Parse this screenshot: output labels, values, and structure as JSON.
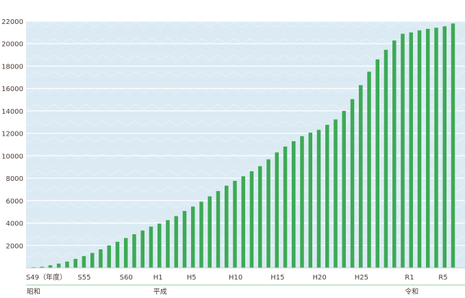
{
  "chart_data": {
    "type": "bar",
    "ylim": [
      0,
      22000
    ],
    "yticks": [
      2000,
      4000,
      6000,
      8000,
      10000,
      12000,
      14000,
      16000,
      18000,
      20000,
      22000
    ],
    "grid": true,
    "colors": {
      "bar": "#3daa55",
      "plot_bg": "#dcebf3",
      "grid": "#ffffff",
      "era_line": "#8fcf9b"
    },
    "x": [
      "S49",
      "S50",
      "S51",
      "S52",
      "S53",
      "S54",
      "S55",
      "S56",
      "S57",
      "S58",
      "S59",
      "S60",
      "S61",
      "S62",
      "S63",
      "H1",
      "H2",
      "H3",
      "H4",
      "H5",
      "H6",
      "H7",
      "H8",
      "H9",
      "H10",
      "H11",
      "H12",
      "H13",
      "H14",
      "H15",
      "H16",
      "H17",
      "H18",
      "H19",
      "H20",
      "H21",
      "H22",
      "H23",
      "H24",
      "H25",
      "H26",
      "H27",
      "H28",
      "H29",
      "H30",
      "R1",
      "R2",
      "R3",
      "R4",
      "R5",
      "R6"
    ],
    "values": [
      60,
      100,
      230,
      380,
      560,
      800,
      1050,
      1330,
      1650,
      2000,
      2330,
      2660,
      3000,
      3330,
      3680,
      3950,
      4260,
      4620,
      5070,
      5470,
      5900,
      6380,
      6850,
      7330,
      7760,
      8170,
      8620,
      9070,
      9680,
      10300,
      10820,
      11300,
      11750,
      12060,
      12310,
      12760,
      13240,
      14000,
      15050,
      16300,
      17500,
      18600,
      19450,
      20280,
      20880,
      21000,
      21180,
      21320,
      21420,
      21550,
      21800
    ],
    "x_tick_labels": [
      {
        "at": "S49",
        "label": "S49（年度）"
      },
      {
        "at": "S55",
        "label": "S55"
      },
      {
        "at": "S60",
        "label": "S60"
      },
      {
        "at": "H1",
        "label": "H1"
      },
      {
        "at": "H5",
        "label": "H5"
      },
      {
        "at": "H10",
        "label": "H10"
      },
      {
        "at": "H15",
        "label": "H15"
      },
      {
        "at": "H20",
        "label": "H20"
      },
      {
        "at": "H25",
        "label": "H25"
      },
      {
        "at": "R1",
        "label": "R1"
      },
      {
        "at": "R5",
        "label": "R5"
      }
    ],
    "eras": [
      {
        "label": "昭和",
        "from": "S49",
        "to": "S63"
      },
      {
        "label": "平成",
        "from": "H1",
        "to": "H30"
      },
      {
        "label": "令和",
        "from": "R1",
        "to": "R6"
      }
    ]
  }
}
